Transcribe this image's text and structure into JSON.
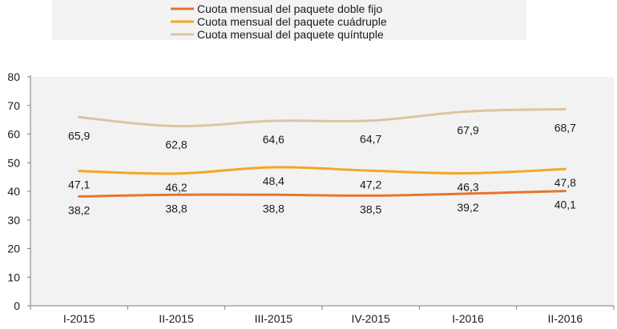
{
  "chart_data": {
    "type": "line",
    "categories": [
      "I-2015",
      "II-2015",
      "III-2015",
      "IV-2015",
      "I-2016",
      "II-2016"
    ],
    "ylim": [
      0,
      80
    ],
    "yticks": [
      0,
      10,
      20,
      30,
      40,
      50,
      60,
      70,
      80
    ],
    "ytick_labels": [
      "0",
      "10",
      "20",
      "30",
      "40",
      "50",
      "60",
      "70",
      "80"
    ],
    "legend_position": "top",
    "series": [
      {
        "name": "Cuota mensual del paquete doble fijo",
        "color": "#e8742c",
        "values": [
          38.2,
          38.8,
          38.8,
          38.5,
          39.2,
          40.1
        ],
        "labels": [
          "38,2",
          "38,8",
          "38,8",
          "38,5",
          "39,2",
          "40,1"
        ]
      },
      {
        "name": "Cuota mensual del paquete cuádruple",
        "color": "#f5a623",
        "values": [
          47.1,
          46.2,
          48.4,
          47.2,
          46.3,
          47.8
        ],
        "labels": [
          "47,1",
          "46,2",
          "48,4",
          "47,2",
          "46,3",
          "47,8"
        ]
      },
      {
        "name": "Cuota mensual del paquete quíntuple",
        "color": "#dcc4a0",
        "values": [
          65.9,
          62.8,
          64.6,
          64.7,
          67.9,
          68.7
        ],
        "labels": [
          "65,9",
          "62,8",
          "64,6",
          "64,7",
          "67,9",
          "68,7"
        ]
      }
    ]
  }
}
